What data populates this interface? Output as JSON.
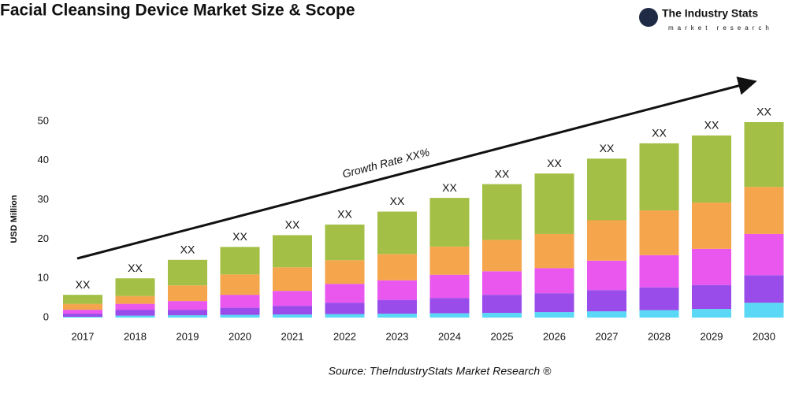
{
  "chart_data": {
    "type": "stacked-bar",
    "title": "Facial Cleansing Device Market Size & Scope",
    "logo": {
      "name": "The Industry Stats",
      "tagline": "market research"
    },
    "y_label": "USD Million",
    "annotation": "Growth Rate XX%",
    "source": "Source: TheIndustryStats Market Research ®",
    "categories": [
      "2017",
      "2018",
      "2019",
      "2020",
      "2021",
      "2022",
      "2023",
      "2024",
      "2025",
      "2026",
      "2027",
      "2028",
      "2029",
      "2030"
    ],
    "series": [
      {
        "color": "#5ad8f5",
        "values": [
          0.2,
          0.5,
          0.6,
          0.7,
          0.8,
          0.9,
          1,
          1.1,
          1.2,
          1.4,
          1.6,
          1.9,
          2.2,
          3.8
        ]
      },
      {
        "color": "#9a4cea",
        "values": [
          0.8,
          1.5,
          1.4,
          1.8,
          2.2,
          2.9,
          3.5,
          3.9,
          4.6,
          4.8,
          5.4,
          5.8,
          6.1,
          7
        ]
      },
      {
        "color": "#e957ee",
        "values": [
          1.0,
          1.5,
          2.2,
          3.3,
          3.8,
          4.8,
          5,
          5.9,
          6,
          6.4,
          7.5,
          8.2,
          9.2,
          10.5
        ]
      },
      {
        "color": "#f5a64d",
        "values": [
          1.5,
          2,
          4,
          5.2,
          6,
          6,
          6.7,
          7.2,
          8,
          8.7,
          10.3,
          11.4,
          11.8,
          12
        ]
      },
      {
        "color": "#a3bf45",
        "values": [
          2.3,
          4.5,
          6.5,
          7,
          8.2,
          9.1,
          10.8,
          12.4,
          14.2,
          15.4,
          15.7,
          17.1,
          17.1,
          16.5
        ]
      }
    ],
    "total_labels": [
      "XX",
      "XX",
      "XX",
      "XX",
      "XX",
      "XX",
      "XX",
      "XX",
      "XX",
      "XX",
      "XX",
      "XX",
      "XX",
      "XX"
    ],
    "ylim": [
      -2,
      52
    ],
    "yticks": [
      0,
      10,
      20,
      30,
      40,
      50
    ],
    "grid": false
  }
}
